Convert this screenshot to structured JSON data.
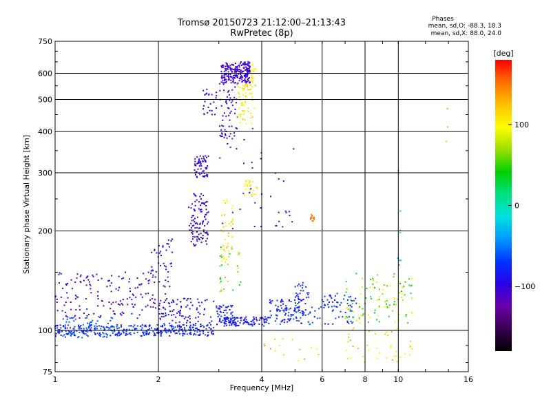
{
  "header": {
    "title_line1": "Tromsø 20150723 21:12:00–21:13:43",
    "title_line2": "RwPretec (8p)",
    "phases_heading": "Phases",
    "phases_o": "mean, sd,O: -88.3, 18.3",
    "phases_x": "mean, sd,X:  88.0, 24.0"
  },
  "colorbar": {
    "label": "[deg]",
    "ticks": [
      {
        "value": 100,
        "label": "100"
      },
      {
        "value": 0,
        "label": "0"
      },
      {
        "value": -100,
        "label": "−100"
      }
    ],
    "range": [
      -180,
      180
    ],
    "colors": [
      "#000000",
      "#3a0050",
      "#6a00a8",
      "#2a00e8",
      "#0033ff",
      "#0099ff",
      "#00e0e0",
      "#00e080",
      "#00d000",
      "#9ae000",
      "#ffff00",
      "#ffc000",
      "#ff7000",
      "#ff0000"
    ]
  },
  "chart_data": {
    "type": "scatter",
    "title": "Tromsø 20150723 21:12:00–21:13:43",
    "subtitle": "RwPretec (8p)",
    "xlabel": "Frequency [MHz]",
    "ylabel": "Stationary phase Virtual Height [km]",
    "x_scale": "log",
    "y_scale": "log",
    "xlim": [
      1,
      16
    ],
    "ylim": [
      75,
      750
    ],
    "x_ticks": [
      {
        "value": 1,
        "label": "1"
      },
      {
        "value": 2,
        "label": "2"
      },
      {
        "value": 4,
        "label": "4"
      },
      {
        "value": 6,
        "label": "6"
      },
      {
        "value": 8,
        "label": "8"
      },
      {
        "value": 10,
        "label": "10"
      },
      {
        "value": 16,
        "label": "16"
      }
    ],
    "x_gridlines": [
      2,
      4,
      6,
      8,
      10
    ],
    "y_ticks": [
      {
        "value": 75,
        "label": "75"
      },
      {
        "value": 100,
        "label": "100"
      },
      {
        "value": 200,
        "label": "200"
      },
      {
        "value": 300,
        "label": "300"
      },
      {
        "value": 400,
        "label": "400"
      },
      {
        "value": 500,
        "label": "500"
      },
      {
        "value": 600,
        "label": "600"
      },
      {
        "value": 750,
        "label": "750"
      }
    ],
    "y_gridlines": [
      100,
      200,
      300,
      400,
      500,
      600
    ],
    "grid": true,
    "color_encoding": "phase [deg], -180 to 180",
    "clusters": [
      {
        "f": [
          1.0,
          1.85
        ],
        "h": [
          96,
          104
        ],
        "phase": [
          -90,
          -60
        ],
        "n": 170
      },
      {
        "f": [
          1.05,
          1.5
        ],
        "h": [
          95,
          110
        ],
        "phase": [
          -70,
          -50
        ],
        "n": 70
      },
      {
        "f": [
          1.85,
          2.9
        ],
        "h": [
          96,
          104
        ],
        "phase": [
          -100,
          -60
        ],
        "n": 150
      },
      {
        "f": [
          1.0,
          2.2
        ],
        "h": [
          108,
          150
        ],
        "phase": [
          -140,
          -80
        ],
        "n": 170
      },
      {
        "f": [
          2.0,
          2.9
        ],
        "h": [
          104,
          125
        ],
        "phase": [
          -110,
          -70
        ],
        "n": 90
      },
      {
        "f": [
          1.9,
          2.2
        ],
        "h": [
          150,
          190
        ],
        "phase": [
          -110,
          -80
        ],
        "n": 35
      },
      {
        "f": [
          2.45,
          2.8
        ],
        "h": [
          180,
          260
        ],
        "phase": [
          -110,
          -90
        ],
        "n": 110
      },
      {
        "f": [
          2.55,
          2.8
        ],
        "h": [
          290,
          340
        ],
        "phase": [
          -110,
          -90
        ],
        "n": 60
      },
      {
        "f": [
          2.7,
          2.95
        ],
        "h": [
          450,
          540
        ],
        "phase": [
          -110,
          -90
        ],
        "n": 25
      },
      {
        "f": [
          3.05,
          3.7
        ],
        "h": [
          560,
          650
        ],
        "phase": [
          -120,
          -90
        ],
        "n": 220
      },
      {
        "f": [
          3.0,
          3.4
        ],
        "h": [
          380,
          560
        ],
        "phase": [
          -110,
          -90
        ],
        "n": 60
      },
      {
        "f": [
          3.4,
          3.85
        ],
        "h": [
          420,
          560
        ],
        "phase": [
          90,
          130
        ],
        "n": 60
      },
      {
        "f": [
          3.7,
          3.85
        ],
        "h": [
          560,
          640
        ],
        "phase": [
          95,
          120
        ],
        "n": 20
      },
      {
        "f": [
          3.55,
          3.9
        ],
        "h": [
          255,
          285
        ],
        "phase": [
          95,
          120
        ],
        "n": 25
      },
      {
        "f": [
          3.05,
          3.3
        ],
        "h": [
          160,
          250
        ],
        "phase": [
          80,
          130
        ],
        "n": 40
      },
      {
        "f": [
          3.0,
          3.5
        ],
        "h": [
          130,
          180
        ],
        "phase": [
          20,
          90
        ],
        "n": 30
      },
      {
        "f": [
          2.95,
          3.3
        ],
        "h": [
          104,
          120
        ],
        "phase": [
          -100,
          -70
        ],
        "n": 50
      },
      {
        "f": [
          3.1,
          4.2
        ],
        "h": [
          103,
          110
        ],
        "phase": [
          -100,
          -70
        ],
        "n": 110
      },
      {
        "f": [
          4.2,
          5.4
        ],
        "h": [
          105,
          125
        ],
        "phase": [
          -100,
          -70
        ],
        "n": 80
      },
      {
        "f": [
          5.0,
          5.5
        ],
        "h": [
          120,
          140
        ],
        "phase": [
          -95,
          -70
        ],
        "n": 25
      },
      {
        "f": [
          4.5,
          6.0
        ],
        "h": [
          104,
          118
        ],
        "phase": [
          -80,
          -50
        ],
        "n": 40
      },
      {
        "f": [
          6.0,
          7.6
        ],
        "h": [
          104,
          130
        ],
        "phase": [
          -90,
          -60
        ],
        "n": 60
      },
      {
        "f": [
          7.0,
          11.0
        ],
        "h": [
          105,
          150
        ],
        "phase": [
          20,
          110
        ],
        "n": 110
      },
      {
        "f": [
          7.0,
          11.0
        ],
        "h": [
          80,
          102
        ],
        "phase": [
          80,
          140
        ],
        "n": 40
      },
      {
        "f": [
          4.0,
          6.0
        ],
        "h": [
          78,
          95
        ],
        "phase": [
          80,
          150
        ],
        "n": 15
      },
      {
        "f": [
          5.55,
          5.7
        ],
        "h": [
          214,
          225
        ],
        "phase": [
          140,
          160
        ],
        "n": 12
      },
      {
        "f": [
          3.0,
          5.0
        ],
        "h": [
          200,
          420
        ],
        "phase": [
          -110,
          -80
        ],
        "n": 40
      },
      {
        "f": [
          9.9,
          10.2
        ],
        "h": [
          150,
          330
        ],
        "phase": [
          -40,
          0
        ],
        "n": 8
      },
      {
        "f": [
          13.5,
          14.0
        ],
        "h": [
          360,
          500
        ],
        "phase": [
          120,
          160
        ],
        "n": 3
      }
    ]
  }
}
